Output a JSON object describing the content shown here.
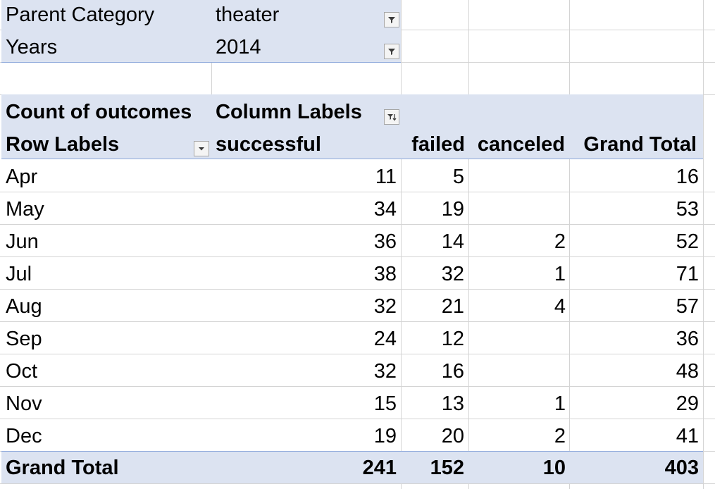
{
  "filters": [
    {
      "label": "Parent Category",
      "value": "theater"
    },
    {
      "label": "Years",
      "value": "2014"
    }
  ],
  "pivot": {
    "value_header": "Count of outcomes",
    "column_labels": "Column Labels",
    "row_labels": "Row Labels",
    "columns": [
      "successful",
      "failed",
      "canceled",
      "Grand Total"
    ],
    "rows": [
      {
        "label": "Apr",
        "successful": "11",
        "failed": "5",
        "canceled": "",
        "total": "16"
      },
      {
        "label": "May",
        "successful": "34",
        "failed": "19",
        "canceled": "",
        "total": "53"
      },
      {
        "label": "Jun",
        "successful": "36",
        "failed": "14",
        "canceled": "2",
        "total": "52"
      },
      {
        "label": "Jul",
        "successful": "38",
        "failed": "32",
        "canceled": "1",
        "total": "71"
      },
      {
        "label": "Aug",
        "successful": "32",
        "failed": "21",
        "canceled": "4",
        "total": "57"
      },
      {
        "label": "Sep",
        "successful": "24",
        "failed": "12",
        "canceled": "",
        "total": "36"
      },
      {
        "label": "Oct",
        "successful": "32",
        "failed": "16",
        "canceled": "",
        "total": "48"
      },
      {
        "label": "Nov",
        "successful": "15",
        "failed": "13",
        "canceled": "1",
        "total": "29"
      },
      {
        "label": "Dec",
        "successful": "19",
        "failed": "20",
        "canceled": "2",
        "total": "41"
      }
    ],
    "grand_total": {
      "label": "Grand Total",
      "successful": "241",
      "failed": "152",
      "canceled": "10",
      "total": "403"
    }
  },
  "icons": {
    "filter_button": "filter-dropdown-icon",
    "sort_filter_button": "sort-filter-icon",
    "dropdown_button": "chevron-down-icon"
  },
  "colors": {
    "band": "#dce3f1",
    "band_border": "#8ea9db",
    "gridline": "#d4d4d4"
  }
}
